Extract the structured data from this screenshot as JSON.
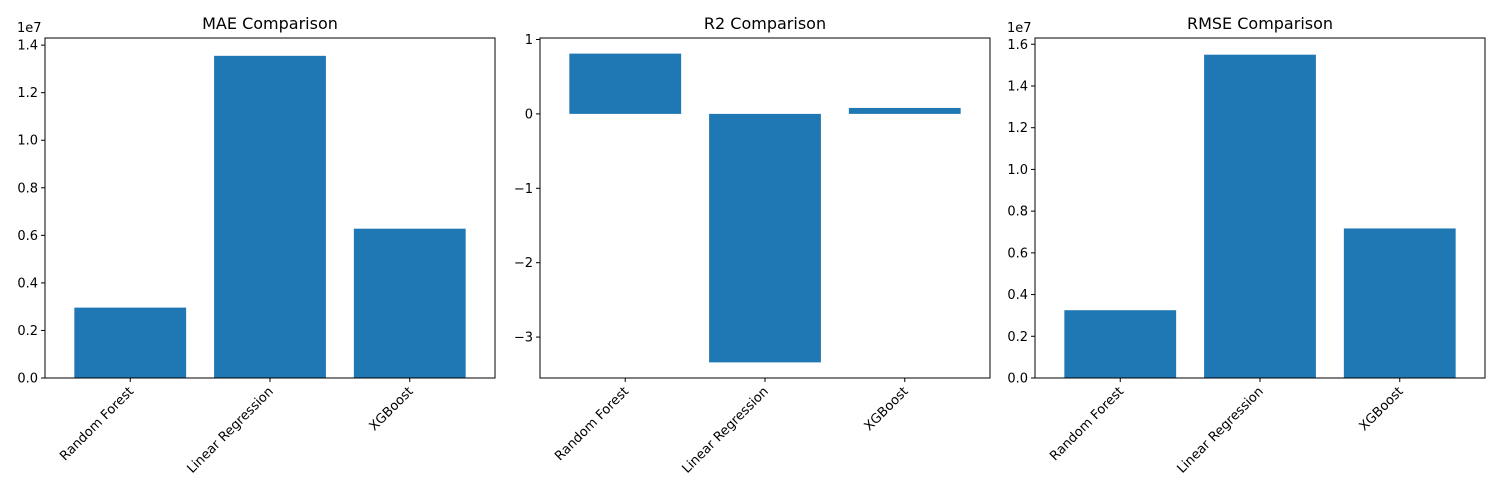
{
  "chart_data": [
    {
      "type": "bar",
      "title": "MAE Comparison",
      "categories": [
        "Random Forest",
        "Linear Regression",
        "XGBoost"
      ],
      "values": [
        2960000,
        13550000,
        6280000
      ],
      "ylim": [
        0,
        14300000
      ],
      "yticks": [
        0,
        2000000,
        4000000,
        6000000,
        8000000,
        10000000,
        12000000,
        14000000
      ],
      "ytick_labels": [
        "0.0",
        "0.2",
        "0.4",
        "0.6",
        "0.8",
        "1.0",
        "1.2",
        "1.4"
      ],
      "offset_text": "1e7",
      "xlabel": "",
      "ylabel": "",
      "grid": false,
      "bar_color": "#1f77b4"
    },
    {
      "type": "bar",
      "title": "R2 Comparison",
      "categories": [
        "Random Forest",
        "Linear Regression",
        "XGBoost"
      ],
      "values": [
        0.81,
        -3.34,
        0.08
      ],
      "ylim": [
        -3.55,
        1.02
      ],
      "yticks": [
        -3,
        -2,
        -1,
        0,
        1
      ],
      "ytick_labels": [
        "−3",
        "−2",
        "−1",
        "0",
        "1"
      ],
      "offset_text": "",
      "xlabel": "",
      "ylabel": "",
      "grid": false,
      "bar_color": "#1f77b4"
    },
    {
      "type": "bar",
      "title": "RMSE Comparison",
      "categories": [
        "Random Forest",
        "Linear Regression",
        "XGBoost"
      ],
      "values": [
        3250000,
        15500000,
        7170000
      ],
      "ylim": [
        0,
        16300000
      ],
      "yticks": [
        0,
        2000000,
        4000000,
        6000000,
        8000000,
        10000000,
        12000000,
        14000000,
        16000000
      ],
      "ytick_labels": [
        "0.0",
        "0.2",
        "0.4",
        "0.6",
        "0.8",
        "1.0",
        "1.2",
        "1.4",
        "1.6"
      ],
      "offset_text": "1e7",
      "xlabel": "",
      "ylabel": "",
      "grid": false,
      "bar_color": "#1f77b4"
    }
  ]
}
